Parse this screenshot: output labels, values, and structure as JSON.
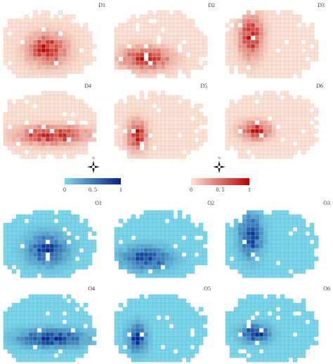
{
  "destination_maps": [
    {
      "label": "D1"
    },
    {
      "label": "D2"
    },
    {
      "label": "D3"
    },
    {
      "label": "D4"
    },
    {
      "label": "D5"
    },
    {
      "label": "D6"
    }
  ],
  "origin_maps": [
    {
      "label": "O1"
    },
    {
      "label": "O2"
    },
    {
      "label": "O3"
    },
    {
      "label": "O4"
    },
    {
      "label": "O5"
    },
    {
      "label": "O6"
    }
  ],
  "legends": [
    {
      "ticks": [
        0,
        {
          "value": 0.5,
          "label": "0. 5"
        },
        1
      ]
    },
    {
      "ticks": [
        0,
        {
          "value": 0.5,
          "label": "0. 5"
        },
        1
      ]
    }
  ],
  "north_label": "N"
}
